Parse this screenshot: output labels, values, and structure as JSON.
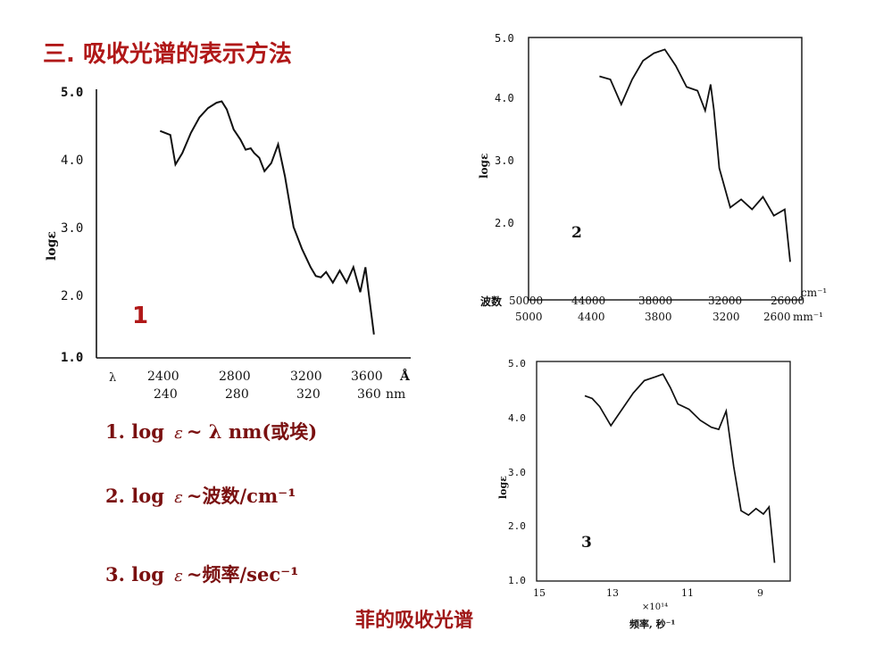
{
  "title": "三. 吸收光谱的表示方法",
  "caption": "菲的吸收光谱",
  "labels": [
    {
      "prefix": "1.  log ",
      "eps": "ε",
      "rest": "~ λ nm(或埃)"
    },
    {
      "prefix": "2.  log ",
      "eps": "ε",
      "rest": "~波数/cm⁻¹"
    },
    {
      "prefix": "3.  log ",
      "eps": "ε",
      "rest": "~频率/sec⁻¹"
    }
  ],
  "colors": {
    "title": "#b01818",
    "labels": "#7a1010",
    "plot_number_1": "#b01818"
  },
  "chart_data": [
    {
      "type": "line",
      "number": "1",
      "ylabel": "logε",
      "ylim": [
        1.0,
        5.0
      ],
      "yticks": [
        "1.0",
        "2.0",
        "3.0",
        "4.0",
        "5.0"
      ],
      "xlabel_symbol": "λ",
      "xticks_A": [
        "2400",
        "2800",
        "3200",
        "3600"
      ],
      "xticks_nm": [
        "240",
        "280",
        "320",
        "360"
      ],
      "unit_A": "Å",
      "unit_nm": "nm",
      "x": [
        2370,
        2400,
        2430,
        2460,
        2500,
        2550,
        2600,
        2650,
        2700,
        2730,
        2760,
        2800,
        2840,
        2870,
        2900,
        2920,
        2950,
        2980,
        3020,
        3060,
        3100,
        3150,
        3200,
        3250,
        3280,
        3310,
        3340,
        3380,
        3420,
        3460,
        3500,
        3540,
        3570,
        3600,
        3620
      ],
      "y": [
        4.38,
        4.35,
        4.32,
        3.88,
        4.05,
        4.35,
        4.58,
        4.72,
        4.8,
        4.82,
        4.7,
        4.4,
        4.25,
        4.1,
        4.12,
        4.05,
        3.98,
        3.78,
        3.9,
        4.18,
        3.7,
        2.95,
        2.62,
        2.35,
        2.22,
        2.2,
        2.28,
        2.12,
        2.3,
        2.12,
        2.35,
        1.98,
        2.35,
        1.75,
        1.35
      ]
    },
    {
      "type": "line",
      "number": "2",
      "ylabel": "logε",
      "ylim": [
        1.0,
        5.0
      ],
      "yticks": [
        "2.0",
        "3.0",
        "4.0",
        "5.0"
      ],
      "xlabel": "波数",
      "xticks_cm": [
        "50000",
        "44000",
        "38000",
        "32000",
        "26000"
      ],
      "xticks_mm": [
        "5000",
        "4400",
        "3800",
        "3200",
        "2600"
      ],
      "unit_cm": "cm⁻¹",
      "unit_mm": "mm⁻¹",
      "x": [
        43500,
        42500,
        41500,
        40500,
        39500,
        38500,
        37500,
        36500,
        35500,
        34500,
        33800,
        33300,
        33000,
        32500,
        31500,
        30500,
        29500,
        28500,
        27500,
        26500,
        26000
      ],
      "y": [
        4.35,
        4.3,
        3.9,
        4.3,
        4.6,
        4.72,
        4.78,
        4.52,
        4.18,
        4.12,
        3.8,
        4.22,
        3.82,
        2.88,
        2.25,
        2.38,
        2.22,
        2.42,
        2.12,
        2.22,
        1.38
      ]
    },
    {
      "type": "line",
      "number": "3",
      "ylabel": "logε",
      "ylim": [
        1.0,
        5.0
      ],
      "yticks": [
        "1.0",
        "2.0",
        "3.0",
        "4.0",
        "5.0"
      ],
      "xlabel": "频率, 秒⁻¹",
      "xticks": [
        "15",
        "13",
        "11",
        "9"
      ],
      "x_multiplier": "×10¹⁴",
      "x": [
        13.8,
        13.6,
        13.4,
        13.1,
        12.8,
        12.5,
        12.2,
        11.9,
        11.7,
        11.5,
        11.3,
        11.0,
        10.7,
        10.4,
        10.2,
        10.0,
        9.8,
        9.6,
        9.4,
        9.2,
        9.0,
        8.85,
        8.7
      ],
      "y": [
        4.4,
        4.35,
        4.2,
        3.85,
        4.15,
        4.45,
        4.68,
        4.75,
        4.8,
        4.55,
        4.25,
        4.15,
        3.95,
        3.82,
        3.78,
        4.12,
        3.1,
        2.28,
        2.2,
        2.32,
        2.22,
        2.35,
        1.32
      ]
    }
  ]
}
